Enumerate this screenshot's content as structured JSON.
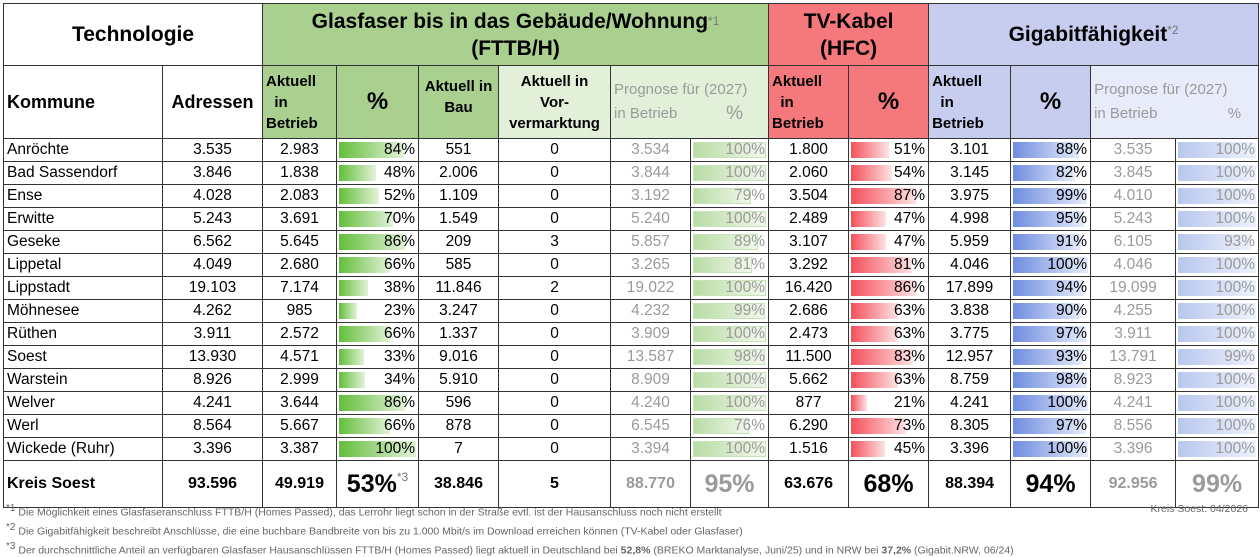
{
  "header": {
    "technologie": "Technologie",
    "glas_line1": "Glasfaser bis in das Gebäude/Wohnung",
    "glas_line2": "(FTTB/H)",
    "glas_sup": "*1",
    "tv_line1": "TV-Kabel",
    "tv_line2": "(HFC)",
    "giga": "Gigabitfähigkeit",
    "giga_sup": "*2",
    "kommune": "Kommune",
    "adressen": "Adressen",
    "aktuell": "Aktuell",
    "in": "in",
    "betrieb": "Betrieb",
    "pct": "%",
    "aktuell_in": "Aktuell in",
    "bau": "Bau",
    "vor1": "Aktuell in",
    "vor2": "Vor-",
    "vor3": "vermarktung",
    "prognose": "Prognose für (2027)",
    "in_betrieb": "in Betrieb"
  },
  "rows": [
    {
      "name": "Anröchte",
      "adr": "3.535",
      "gb": "2.983",
      "gp": "84%",
      "gpv": 84,
      "bau": "551",
      "vor": "0",
      "pgb": "3.534",
      "pgp": "100%",
      "pgpv": 100,
      "tb": "1.800",
      "tp": "51%",
      "tpv": 51,
      "gib": "3.101",
      "gip": "88%",
      "gipv": 88,
      "pgib": "3.535",
      "pgip": "100%",
      "pgipv": 100
    },
    {
      "name": "Bad Sassendorf",
      "adr": "3.846",
      "gb": "1.838",
      "gp": "48%",
      "gpv": 48,
      "bau": "2.006",
      "vor": "0",
      "pgb": "3.844",
      "pgp": "100%",
      "pgpv": 100,
      "tb": "2.060",
      "tp": "54%",
      "tpv": 54,
      "gib": "3.145",
      "gip": "82%",
      "gipv": 82,
      "pgib": "3.845",
      "pgip": "100%",
      "pgipv": 100
    },
    {
      "name": "Ense",
      "adr": "4.028",
      "gb": "2.083",
      "gp": "52%",
      "gpv": 52,
      "bau": "1.109",
      "vor": "0",
      "pgb": "3.192",
      "pgp": "79%",
      "pgpv": 79,
      "tb": "3.504",
      "tp": "87%",
      "tpv": 87,
      "gib": "3.975",
      "gip": "99%",
      "gipv": 99,
      "pgib": "4.010",
      "pgip": "100%",
      "pgipv": 100
    },
    {
      "name": "Erwitte",
      "adr": "5.243",
      "gb": "3.691",
      "gp": "70%",
      "gpv": 70,
      "bau": "1.549",
      "vor": "0",
      "pgb": "5.240",
      "pgp": "100%",
      "pgpv": 100,
      "tb": "2.489",
      "tp": "47%",
      "tpv": 47,
      "gib": "4.998",
      "gip": "95%",
      "gipv": 95,
      "pgib": "5.243",
      "pgip": "100%",
      "pgipv": 100
    },
    {
      "name": "Geseke",
      "adr": "6.562",
      "gb": "5.645",
      "gp": "86%",
      "gpv": 86,
      "bau": "209",
      "vor": "3",
      "pgb": "5.857",
      "pgp": "89%",
      "pgpv": 89,
      "tb": "3.107",
      "tp": "47%",
      "tpv": 47,
      "gib": "5.959",
      "gip": "91%",
      "gipv": 91,
      "pgib": "6.105",
      "pgip": "93%",
      "pgipv": 93
    },
    {
      "name": "Lippetal",
      "adr": "4.049",
      "gb": "2.680",
      "gp": "66%",
      "gpv": 66,
      "bau": "585",
      "vor": "0",
      "pgb": "3.265",
      "pgp": "81%",
      "pgpv": 81,
      "tb": "3.292",
      "tp": "81%",
      "tpv": 81,
      "gib": "4.046",
      "gip": "100%",
      "gipv": 100,
      "pgib": "4.046",
      "pgip": "100%",
      "pgipv": 100
    },
    {
      "name": "Lippstadt",
      "adr": "19.103",
      "gb": "7.174",
      "gp": "38%",
      "gpv": 38,
      "bau": "11.846",
      "vor": "2",
      "pgb": "19.022",
      "pgp": "100%",
      "pgpv": 100,
      "tb": "16.420",
      "tp": "86%",
      "tpv": 86,
      "gib": "17.899",
      "gip": "94%",
      "gipv": 94,
      "pgib": "19.099",
      "pgip": "100%",
      "pgipv": 100
    },
    {
      "name": "Möhnesee",
      "adr": "4.262",
      "gb": "985",
      "gp": "23%",
      "gpv": 23,
      "bau": "3.247",
      "vor": "0",
      "pgb": "4.232",
      "pgp": "99%",
      "pgpv": 99,
      "tb": "2.686",
      "tp": "63%",
      "tpv": 63,
      "gib": "3.838",
      "gip": "90%",
      "gipv": 90,
      "pgib": "4.255",
      "pgip": "100%",
      "pgipv": 100
    },
    {
      "name": "Rüthen",
      "adr": "3.911",
      "gb": "2.572",
      "gp": "66%",
      "gpv": 66,
      "bau": "1.337",
      "vor": "0",
      "pgb": "3.909",
      "pgp": "100%",
      "pgpv": 100,
      "tb": "2.473",
      "tp": "63%",
      "tpv": 63,
      "gib": "3.775",
      "gip": "97%",
      "gipv": 97,
      "pgib": "3.911",
      "pgip": "100%",
      "pgipv": 100
    },
    {
      "name": "Soest",
      "adr": "13.930",
      "gb": "4.571",
      "gp": "33%",
      "gpv": 33,
      "bau": "9.016",
      "vor": "0",
      "pgb": "13.587",
      "pgp": "98%",
      "pgpv": 98,
      "tb": "11.500",
      "tp": "83%",
      "tpv": 83,
      "gib": "12.957",
      "gip": "93%",
      "gipv": 93,
      "pgib": "13.791",
      "pgip": "99%",
      "pgipv": 99
    },
    {
      "name": "Warstein",
      "adr": "8.926",
      "gb": "2.999",
      "gp": "34%",
      "gpv": 34,
      "bau": "5.910",
      "vor": "0",
      "pgb": "8.909",
      "pgp": "100%",
      "pgpv": 100,
      "tb": "5.662",
      "tp": "63%",
      "tpv": 63,
      "gib": "8.759",
      "gip": "98%",
      "gipv": 98,
      "pgib": "8.923",
      "pgip": "100%",
      "pgipv": 100
    },
    {
      "name": "Welver",
      "adr": "4.241",
      "gb": "3.644",
      "gp": "86%",
      "gpv": 86,
      "bau": "596",
      "vor": "0",
      "pgb": "4.240",
      "pgp": "100%",
      "pgpv": 100,
      "tb": "877",
      "tp": "21%",
      "tpv": 21,
      "gib": "4.241",
      "gip": "100%",
      "gipv": 100,
      "pgib": "4.241",
      "pgip": "100%",
      "pgipv": 100
    },
    {
      "name": "Werl",
      "adr": "8.564",
      "gb": "5.667",
      "gp": "66%",
      "gpv": 66,
      "bau": "878",
      "vor": "0",
      "pgb": "6.545",
      "pgp": "76%",
      "pgpv": 76,
      "tb": "6.290",
      "tp": "73%",
      "tpv": 73,
      "gib": "8.305",
      "gip": "97%",
      "gipv": 97,
      "pgib": "8.556",
      "pgip": "100%",
      "pgipv": 100
    },
    {
      "name": "Wickede (Ruhr)",
      "adr": "3.396",
      "gb": "3.387",
      "gp": "100%",
      "gpv": 100,
      "bau": "7",
      "vor": "0",
      "pgb": "3.394",
      "pgp": "100%",
      "pgpv": 100,
      "tb": "1.516",
      "tp": "45%",
      "tpv": 45,
      "gib": "3.396",
      "gip": "100%",
      "gipv": 100,
      "pgib": "3.396",
      "pgip": "100%",
      "pgipv": 100
    }
  ],
  "total": {
    "name": "Kreis Soest",
    "adr": "93.596",
    "gb": "49.919",
    "gp": "53%",
    "gp_sup": "*3",
    "bau": "38.846",
    "vor": "5",
    "pgb": "88.770",
    "pgp": "95%",
    "tb": "63.676",
    "tp": "68%",
    "gib": "88.394",
    "gip": "94%",
    "pgib": "92.956",
    "pgip": "99%"
  },
  "notes": {
    "n1_sup": "*1",
    "n1": "Die Möglichkeit eines Glasfaseranschluss FTTB/H (Homes Passed), das Lerrohr liegt schon in der Straße evtl. ist der Hausanschluss noch nicht erstellt",
    "n2_sup": "*2",
    "n2": "Die Gigabitfähigkeit beschreibt Anschlüsse, die eine buchbare Bandbreite von bis zu 1.000 Mbit/s im Download erreichen können (TV-Kabel oder Glasfaser)",
    "n3_sup": "*3",
    "n3_a": "Der durchschnittliche Anteil an verfügbaren Glasfaser Hausanschlüssen FTTB/H (Homes Passed) liegt aktuell in Deutschland bei ",
    "n3_b": "52,8%",
    "n3_c": " (BREKO Marktanalyse, Juni/25) und in NRW bei ",
    "n3_d": "37,2%",
    "n3_e": " (Gigabit.NRW, 06/24)",
    "stamp": "Kreis Soest: 04/2026"
  },
  "colors": {
    "green": "#a9d08e",
    "red": "#f4787c",
    "blue": "#c7cdee",
    "gray_text": "#9a9a9a"
  }
}
